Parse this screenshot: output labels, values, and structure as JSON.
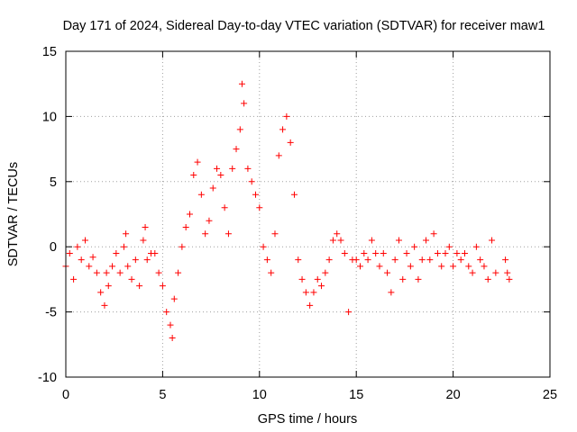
{
  "chart_data": {
    "type": "scatter",
    "title": "Day 171 of 2024, Sidereal Day-to-day VTEC variation (SDTVAR) for receiver maw1",
    "xlabel": "GPS time / hours",
    "ylabel": "SDTVAR / TECUs",
    "xlim": [
      0,
      25
    ],
    "ylim": [
      -10,
      15
    ],
    "xticks": [
      0,
      5,
      10,
      15,
      20,
      25
    ],
    "yticks": [
      -10,
      -5,
      0,
      5,
      10,
      15
    ],
    "grid": true,
    "marker": "+",
    "color": "#ff0000",
    "series": [
      {
        "name": "SDTVAR",
        "x": [
          0.0,
          0.2,
          0.4,
          0.6,
          0.8,
          1.0,
          1.2,
          1.4,
          1.6,
          1.8,
          2.0,
          2.1,
          2.2,
          2.4,
          2.6,
          2.8,
          3.0,
          3.1,
          3.2,
          3.4,
          3.6,
          3.8,
          4.0,
          4.1,
          4.2,
          4.4,
          4.6,
          4.8,
          5.0,
          5.2,
          5.4,
          5.5,
          5.6,
          5.8,
          6.0,
          6.2,
          6.4,
          6.6,
          6.8,
          7.0,
          7.2,
          7.4,
          7.6,
          7.8,
          8.0,
          8.2,
          8.4,
          8.6,
          8.8,
          9.0,
          9.1,
          9.2,
          9.4,
          9.6,
          9.8,
          10.0,
          10.2,
          10.4,
          10.6,
          10.8,
          11.0,
          11.2,
          11.4,
          11.6,
          11.8,
          12.0,
          12.2,
          12.4,
          12.6,
          12.8,
          13.0,
          13.2,
          13.4,
          13.6,
          13.8,
          14.0,
          14.2,
          14.4,
          14.6,
          14.8,
          15.0,
          15.2,
          15.4,
          15.6,
          15.8,
          16.0,
          16.2,
          16.4,
          16.6,
          16.8,
          17.0,
          17.2,
          17.4,
          17.6,
          17.8,
          18.0,
          18.2,
          18.4,
          18.6,
          18.8,
          19.0,
          19.2,
          19.4,
          19.6,
          19.8,
          20.0,
          20.2,
          20.4,
          20.6,
          20.8,
          21.0,
          21.2,
          21.4,
          21.6,
          21.8,
          22.0,
          22.2,
          22.7,
          22.8,
          22.9
        ],
        "y": [
          -1.5,
          -0.5,
          -2.5,
          0.0,
          -1.0,
          0.5,
          -1.5,
          -0.8,
          -2.0,
          -3.5,
          -4.5,
          -2.0,
          -3.0,
          -1.5,
          -0.5,
          -2.0,
          0.0,
          1.0,
          -1.5,
          -2.5,
          -1.0,
          -3.0,
          0.5,
          1.5,
          -1.0,
          -0.5,
          -0.5,
          -2.0,
          -3.0,
          -5.0,
          -6.0,
          -7.0,
          -4.0,
          -2.0,
          0.0,
          1.5,
          2.5,
          5.5,
          6.5,
          4.0,
          1.0,
          2.0,
          4.5,
          6.0,
          5.5,
          3.0,
          1.0,
          6.0,
          7.5,
          9.0,
          12.5,
          11.0,
          6.0,
          5.0,
          4.0,
          3.0,
          0.0,
          -1.0,
          -2.0,
          1.0,
          7.0,
          9.0,
          10.0,
          8.0,
          4.0,
          -1.0,
          -2.5,
          -3.5,
          -4.5,
          -3.5,
          -2.5,
          -3.0,
          -2.0,
          -1.0,
          0.5,
          1.0,
          0.5,
          -0.5,
          -5.0,
          -1.0,
          -1.0,
          -1.5,
          -0.5,
          -1.0,
          0.5,
          -0.5,
          -1.5,
          -0.5,
          -2.0,
          -3.5,
          -1.0,
          0.5,
          -2.5,
          -0.5,
          -1.5,
          0.0,
          -2.5,
          -1.0,
          0.5,
          -1.0,
          1.0,
          -0.5,
          -1.5,
          -0.5,
          0.0,
          -1.5,
          -0.5,
          -1.0,
          -0.5,
          -1.5,
          -2.0,
          0.0,
          -1.0,
          -1.5,
          -2.5,
          0.5,
          -2.0,
          -1.0,
          -2.0,
          -2.5
        ]
      }
    ]
  }
}
